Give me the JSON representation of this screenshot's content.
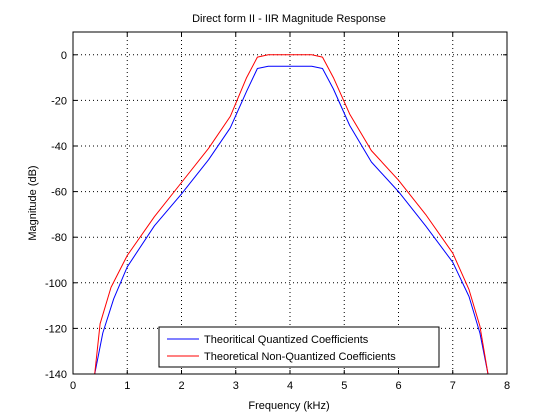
{
  "chart_data": {
    "type": "line",
    "title": "Direct form II - IIR Magnitude Response",
    "xlabel": "Frequency (kHz)",
    "ylabel": "Magnitude (dB)",
    "xlim": [
      0,
      8
    ],
    "ylim": [
      -140,
      10
    ],
    "xticks": [
      0,
      1,
      2,
      3,
      4,
      5,
      6,
      7,
      8
    ],
    "yticks": [
      0,
      -20,
      -40,
      -60,
      -80,
      -100,
      -120,
      -140
    ],
    "grid": true,
    "legend_position": "bottom-center",
    "series": [
      {
        "name": "Theoritical Quantized Coefficients",
        "color": "#0000ff",
        "x": [
          0.4,
          0.55,
          0.75,
          1.0,
          1.5,
          2.0,
          2.5,
          2.9,
          3.2,
          3.4,
          3.6,
          4.0,
          4.4,
          4.6,
          4.8,
          5.1,
          5.5,
          6.0,
          6.5,
          7.0,
          7.3,
          7.5,
          7.65
        ],
        "y": [
          -140,
          -122,
          -107,
          -93,
          -75,
          -61,
          -46,
          -32,
          -16,
          -6,
          -5,
          -5,
          -5,
          -6,
          -15,
          -31,
          -47,
          -60,
          -75,
          -91,
          -106,
          -122,
          -140
        ]
      },
      {
        "name": "Theoretical Non-Quantized Coefficients",
        "color": "#ff0000",
        "x": [
          0.4,
          0.5,
          0.7,
          1.0,
          1.5,
          2.0,
          2.5,
          2.9,
          3.2,
          3.4,
          3.6,
          4.0,
          4.4,
          4.6,
          4.8,
          5.1,
          5.5,
          6.0,
          6.5,
          7.0,
          7.3,
          7.5,
          7.65
        ],
        "y": [
          -140,
          -118,
          -102,
          -88,
          -71,
          -56,
          -41,
          -27,
          -10,
          -1,
          0,
          0,
          0,
          -1,
          -10,
          -26,
          -42,
          -55,
          -70,
          -87,
          -103,
          -119,
          -140
        ]
      }
    ]
  }
}
